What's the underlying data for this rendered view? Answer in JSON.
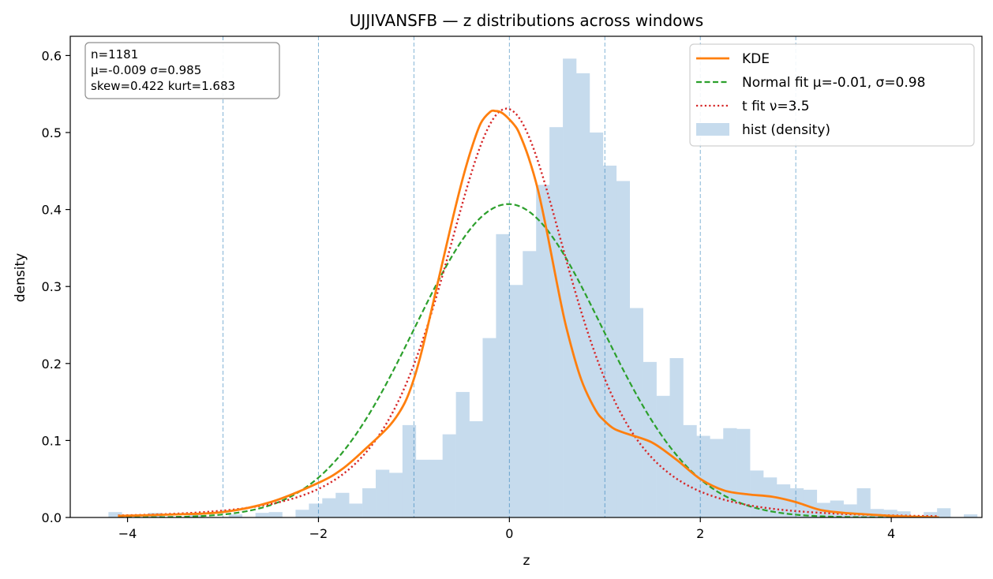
{
  "chart_data": {
    "type": "histogram",
    "title": "UJJIVANSFB — z distributions across windows",
    "xlabel": "z",
    "ylabel": "density",
    "xlim": [
      -4.6,
      4.95
    ],
    "ylim": [
      0,
      0.625
    ],
    "xticks": [
      -4,
      -2,
      0,
      2,
      4
    ],
    "xtick_labels": [
      "−4",
      "−2",
      "0",
      "2",
      "4"
    ],
    "yticks": [
      0.0,
      0.1,
      0.2,
      0.3,
      0.4,
      0.5,
      0.6
    ],
    "ytick_labels": [
      "0.0",
      "0.1",
      "0.2",
      "0.3",
      "0.4",
      "0.5",
      "0.6"
    ],
    "vlines": [
      -3,
      -2,
      -1,
      0,
      1,
      2,
      3
    ],
    "stats": {
      "lines": [
        "n=1181",
        "μ=-0.009  σ=0.985",
        "skew=0.422  kurt=1.683"
      ]
    },
    "legend": {
      "position": "upper right",
      "entries": [
        {
          "label": "KDE",
          "color": "#ff7f0e",
          "style": "solid"
        },
        {
          "label": "Normal fit μ=-0.01, σ=0.98",
          "color": "#2ca02c",
          "style": "dashed"
        },
        {
          "label": "t fit ν=3.5",
          "color": "#d62728",
          "style": "dotted"
        },
        {
          "label": "hist (density)",
          "color": "#c6dbed",
          "style": "patch"
        }
      ]
    },
    "hist": {
      "color": "#c6dbed",
      "bin_width": 0.14,
      "start": -4.2,
      "densities": [
        0.007,
        0,
        0,
        0.006,
        0,
        0,
        0.005,
        0,
        0,
        0.004,
        0,
        0.006,
        0.007,
        0,
        0.01,
        0.018,
        0.025,
        0.032,
        0.018,
        0.038,
        0.062,
        0.058,
        0.12,
        0.075,
        0.075,
        0.108,
        0.163,
        0.125,
        0.233,
        0.368,
        0.302,
        0.346,
        0.432,
        0.507,
        0.596,
        0.577,
        0.5,
        0.457,
        0.437,
        0.272,
        0.202,
        0.158,
        0.207,
        0.12,
        0.106,
        0.102,
        0.116,
        0.115,
        0.061,
        0.052,
        0.043,
        0.038,
        0.036,
        0.019,
        0.022,
        0.017,
        0.038,
        0.011,
        0.01,
        0.008,
        0,
        0.007,
        0.012,
        0,
        0.004
      ]
    },
    "series": [
      {
        "name": "KDE",
        "color": "#ff7f0e",
        "x": [
          -4.1,
          -3.5,
          -3.0,
          -2.5,
          -2.0,
          -1.75,
          -1.5,
          -1.25,
          -1.1,
          -1.0,
          -0.9,
          -0.75,
          -0.6,
          -0.5,
          -0.4,
          -0.3,
          -0.2,
          -0.15,
          -0.1,
          -0.05,
          0.0,
          0.05,
          0.1,
          0.2,
          0.3,
          0.4,
          0.5,
          0.6,
          0.75,
          0.9,
          1.0,
          1.1,
          1.25,
          1.5,
          1.75,
          2.0,
          2.25,
          2.5,
          2.75,
          3.0,
          3.25,
          3.5,
          3.75,
          4.0,
          4.25,
          4.5
        ],
        "y": [
          0.002,
          0.004,
          0.007,
          0.02,
          0.045,
          0.063,
          0.09,
          0.12,
          0.148,
          0.18,
          0.225,
          0.305,
          0.385,
          0.435,
          0.478,
          0.512,
          0.527,
          0.528,
          0.527,
          0.523,
          0.517,
          0.51,
          0.5,
          0.468,
          0.425,
          0.367,
          0.303,
          0.245,
          0.18,
          0.14,
          0.125,
          0.115,
          0.108,
          0.097,
          0.075,
          0.05,
          0.035,
          0.03,
          0.027,
          0.02,
          0.01,
          0.006,
          0.004,
          0.002,
          0.001,
          0.0
        ]
      },
      {
        "name": "Normal fit μ=-0.01, σ=0.98",
        "color": "#2ca02c",
        "mu": -0.01,
        "sigma": 0.98,
        "x_range": [
          -4.1,
          4.5
        ]
      },
      {
        "name": "t fit ν=3.5",
        "color": "#d62728",
        "nu": 3.5,
        "loc": -0.03,
        "scale": 0.7,
        "x_range": [
          -4.1,
          4.5
        ]
      }
    ]
  }
}
